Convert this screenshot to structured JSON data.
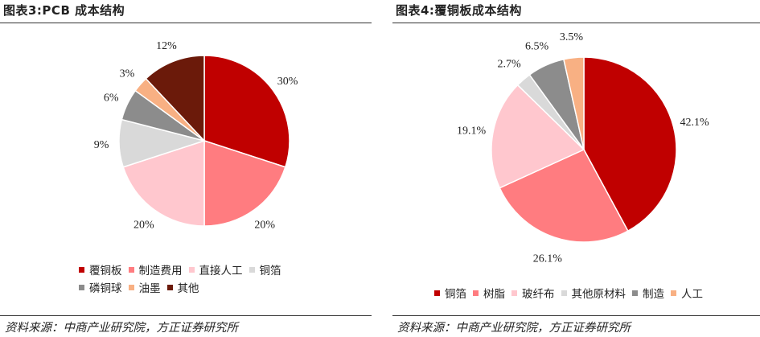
{
  "panels": [
    {
      "title": "图表3:PCB 成本结构",
      "source": "资料来源：中商产业研究院，方正证券研究所",
      "legend_rows": [
        [
          0,
          1,
          2,
          3
        ],
        [
          4,
          5,
          6
        ]
      ]
    },
    {
      "title": "图表4:覆铜板成本结构",
      "source": "资料来源：中商产业研究院，方正证券研究所",
      "legend_rows": [
        [
          0,
          1,
          2,
          3,
          4,
          5
        ]
      ]
    }
  ],
  "chart_data": [
    {
      "type": "pie",
      "title": "图表3:PCB 成本结构",
      "categories": [
        "覆铜板",
        "制造费用",
        "直接人工",
        "铜箔",
        "磷铜球",
        "油墨",
        "其他"
      ],
      "values": [
        30,
        20,
        20,
        9,
        6,
        3,
        12
      ],
      "labels": [
        "30%",
        "20%",
        "20%",
        "9%",
        "6%",
        "3%",
        "12%"
      ],
      "colors": [
        "#c00000",
        "#ff7c80",
        "#ffc7ce",
        "#d9d9d9",
        "#8c8c8c",
        "#f8b083",
        "#6b1a0a"
      ],
      "legend": "bottom"
    },
    {
      "type": "pie",
      "title": "图表4:覆铜板成本结构",
      "categories": [
        "铜箔",
        "树脂",
        "玻纤布",
        "其他原材料",
        "制造",
        "人工"
      ],
      "values": [
        42.1,
        26.1,
        19.1,
        2.7,
        6.5,
        3.5
      ],
      "labels": [
        "42.1%",
        "26.1%",
        "19.1%",
        "2.7%",
        "6.5%",
        "3.5%"
      ],
      "colors": [
        "#c00000",
        "#ff7c80",
        "#ffc7ce",
        "#d9d9d9",
        "#8c8c8c",
        "#f8b083"
      ],
      "legend": "bottom"
    }
  ]
}
